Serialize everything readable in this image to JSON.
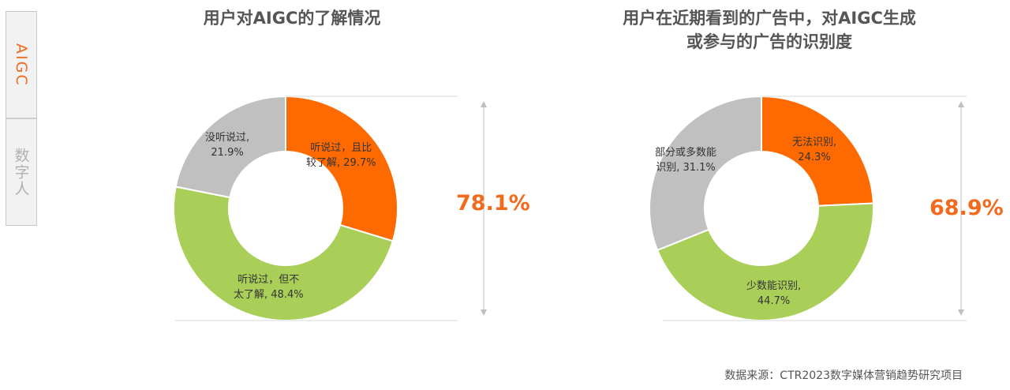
{
  "side_tabs": [
    {
      "label": "AIGC",
      "active": true
    },
    {
      "label": "数字人",
      "active": false
    }
  ],
  "accent_color": "#f26a1b",
  "chart_data": [
    {
      "type": "pie",
      "title": "用户对AIGC的了解情况",
      "slices": [
        {
          "label_line1": "听说过，且比",
          "label_line2": "较了解, 29.7%",
          "value": 29.7,
          "color": "#ff6a00"
        },
        {
          "label_line1": "听说过，但不",
          "label_line2": "太了解, 48.4%",
          "value": 48.4,
          "color": "#a9cf59"
        },
        {
          "label_line1": "没听说过,",
          "label_line2": "21.9%",
          "value": 21.9,
          "color": "#c0c0c0"
        }
      ],
      "bracket_value": "78.1%"
    },
    {
      "type": "pie",
      "title_line1": "用户在近期看到的广告中，对AIGC生成",
      "title_line2": "或参与的广告的识别度",
      "slices": [
        {
          "label_line1": "无法识别,",
          "label_line2": "24.3%",
          "value": 24.3,
          "color": "#ff6a00"
        },
        {
          "label_line1": "少数能识别,",
          "label_line2": "44.7%",
          "value": 44.7,
          "color": "#a9cf59"
        },
        {
          "label_line1": "部分或多数能",
          "label_line2": "识别, 31.1%",
          "value": 31.1,
          "color": "#c0c0c0"
        }
      ],
      "bracket_value": "68.9%"
    }
  ],
  "source_text": "数据来源：CTR2023数字媒体营销趋势研究项目"
}
